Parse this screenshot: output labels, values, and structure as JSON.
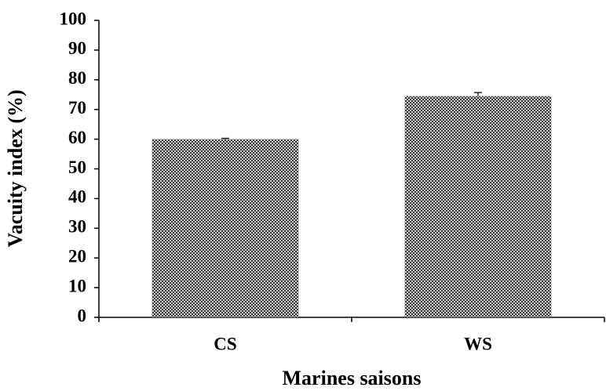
{
  "chart_data": {
    "type": "bar",
    "x_label": "Marines saisons",
    "y_label": "Vacuity index (%)",
    "categories": [
      "CS",
      "WS"
    ],
    "values": [
      60,
      74.5
    ],
    "errors": [
      0.3,
      1.2
    ],
    "color": "#3a3a3a",
    "ylim": [
      0,
      100
    ],
    "yticks": [
      0,
      10,
      20,
      30,
      40,
      50,
      60,
      70,
      80,
      90,
      100
    ]
  }
}
